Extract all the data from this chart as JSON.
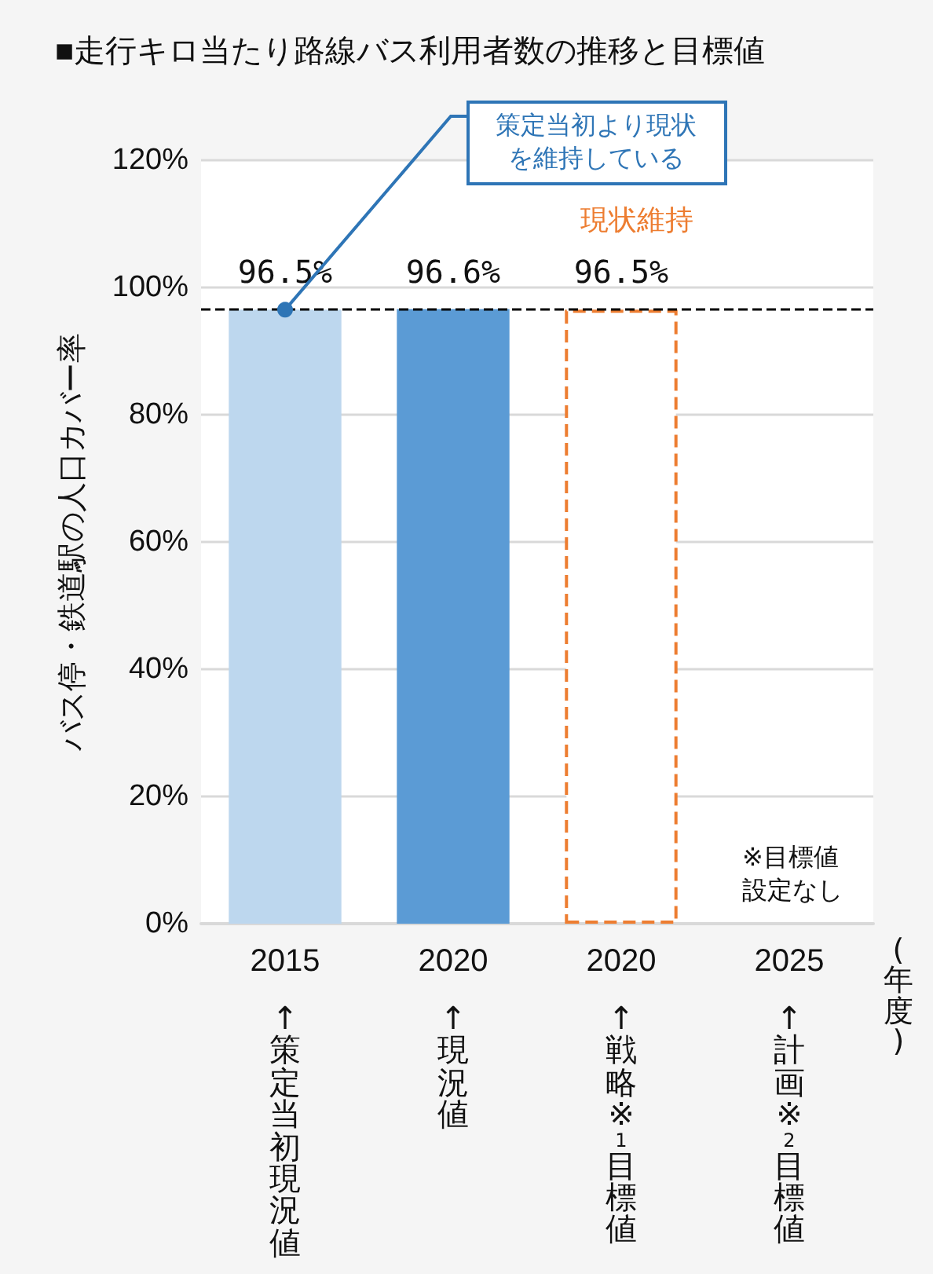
{
  "chart_data": {
    "type": "bar",
    "title": "■走行キロ当たり路線バス利用者数の推移と目標値",
    "ylabel": "バス停・鉄道駅の人口カバー率",
    "categories": [
      "2015",
      "2020",
      "2020",
      "2025"
    ],
    "stacked": true,
    "series": [
      {
        "colors": [
          "#bdd7ee",
          "#5b9bd5",
          null,
          null
        ],
        "values": [
          96.5,
          96.6,
          null,
          null
        ],
        "value_labels": [
          "96.5%",
          "96.6%",
          null,
          null
        ]
      },
      {
        "color": "#ed7d31",
        "line_style": "dashed",
        "values": [
          null,
          null,
          96.5,
          null
        ],
        "value_labels": [
          null,
          null,
          "96.5%",
          null
        ]
      }
    ],
    "ylim": [
      0,
      120
    ],
    "yticks": [
      {
        "value": 0,
        "label": "0%"
      },
      {
        "value": 20,
        "label": "20%"
      },
      {
        "value": 40,
        "label": "40%"
      },
      {
        "value": 60,
        "label": "60%"
      },
      {
        "value": 80,
        "label": "80%"
      },
      {
        "value": 100,
        "label": "100%"
      },
      {
        "value": 120,
        "label": "120%"
      }
    ],
    "grid": "y",
    "ref_lines": [
      {
        "axis": "y",
        "value": 96.5,
        "color": "#000000",
        "line_style": "dashed"
      }
    ],
    "annotations": [
      "↑策定当初現況値",
      "↑現況値",
      "↑戦略※$_{1}$目標値",
      "↑計画※$_{2}$目標値",
      {
        "text": "策定当初より現状を維持している",
        "x": "2015",
        "y": 96.5
      },
      "現状維持",
      "※目標値設定なし",
      "(年度)"
    ]
  }
}
